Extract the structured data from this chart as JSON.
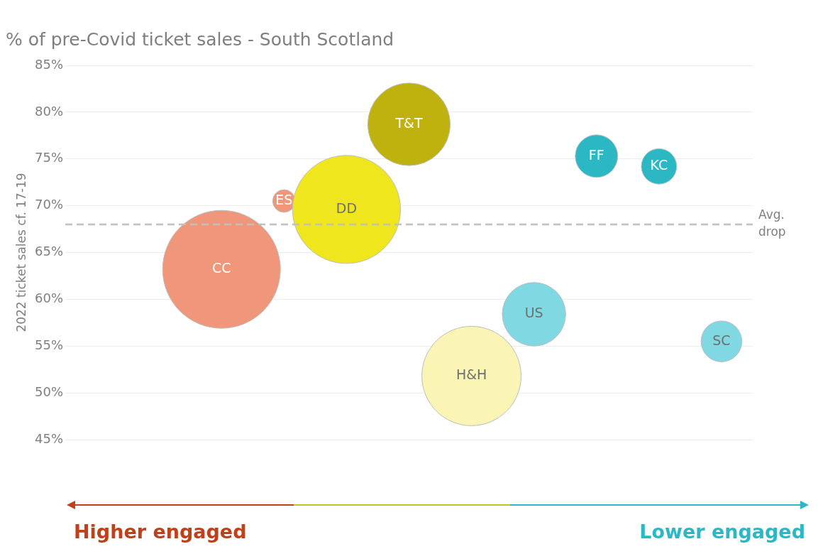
{
  "chart_data": {
    "type": "bubble",
    "title": "% of pre-Covid ticket sales - South Scotland",
    "ylabel": "2022 ticket sales cf. 17-19",
    "categories": [
      null,
      null,
      null,
      null,
      null,
      null,
      null,
      null,
      null,
      null,
      null
    ],
    "values": [
      null,
      null,
      63.2,
      70.5,
      69.6,
      78.7,
      51.8,
      58.4,
      75.3,
      74.2,
      55.5
    ],
    "sizes": [
      null,
      null,
      1,
      0.037,
      0.84,
      0.49,
      0.71,
      0.29,
      0.13,
      0.09,
      0.12
    ],
    "colors": [
      "#f0967a",
      "#f0967a",
      "#f0967a",
      "#f0967a",
      "#f0e61e",
      "#bfb20f",
      "#faf5b4",
      "#80d8e2",
      "#2bb8c4",
      "#2bb8c4",
      "#80d8e2"
    ],
    "value_labels": [
      null,
      null,
      "CC",
      "ES",
      "DD",
      "T&T",
      "H&H",
      "US",
      "FF",
      "KC",
      "SC"
    ],
    "ylim": [
      45,
      85
    ],
    "yticks": [
      {
        "value": 45,
        "label": "45%"
      },
      {
        "value": 50,
        "label": "50%"
      },
      {
        "value": 55,
        "label": "55%"
      },
      {
        "value": 60,
        "label": "60%"
      },
      {
        "value": 65,
        "label": "65%"
      },
      {
        "value": 70,
        "label": "70%"
      },
      {
        "value": 75,
        "label": "75%"
      },
      {
        "value": 80,
        "label": "80%"
      },
      {
        "value": 85,
        "label": "85%"
      }
    ],
    "grid": "y",
    "ref_lines": [
      {
        "axis": "y",
        "value": 68,
        "label": "Avg. drop",
        "color": "#c0c0c0",
        "line_style": "dashed"
      }
    ],
    "annotations": [
      "Higher engaged",
      "Lower engaged"
    ]
  }
}
